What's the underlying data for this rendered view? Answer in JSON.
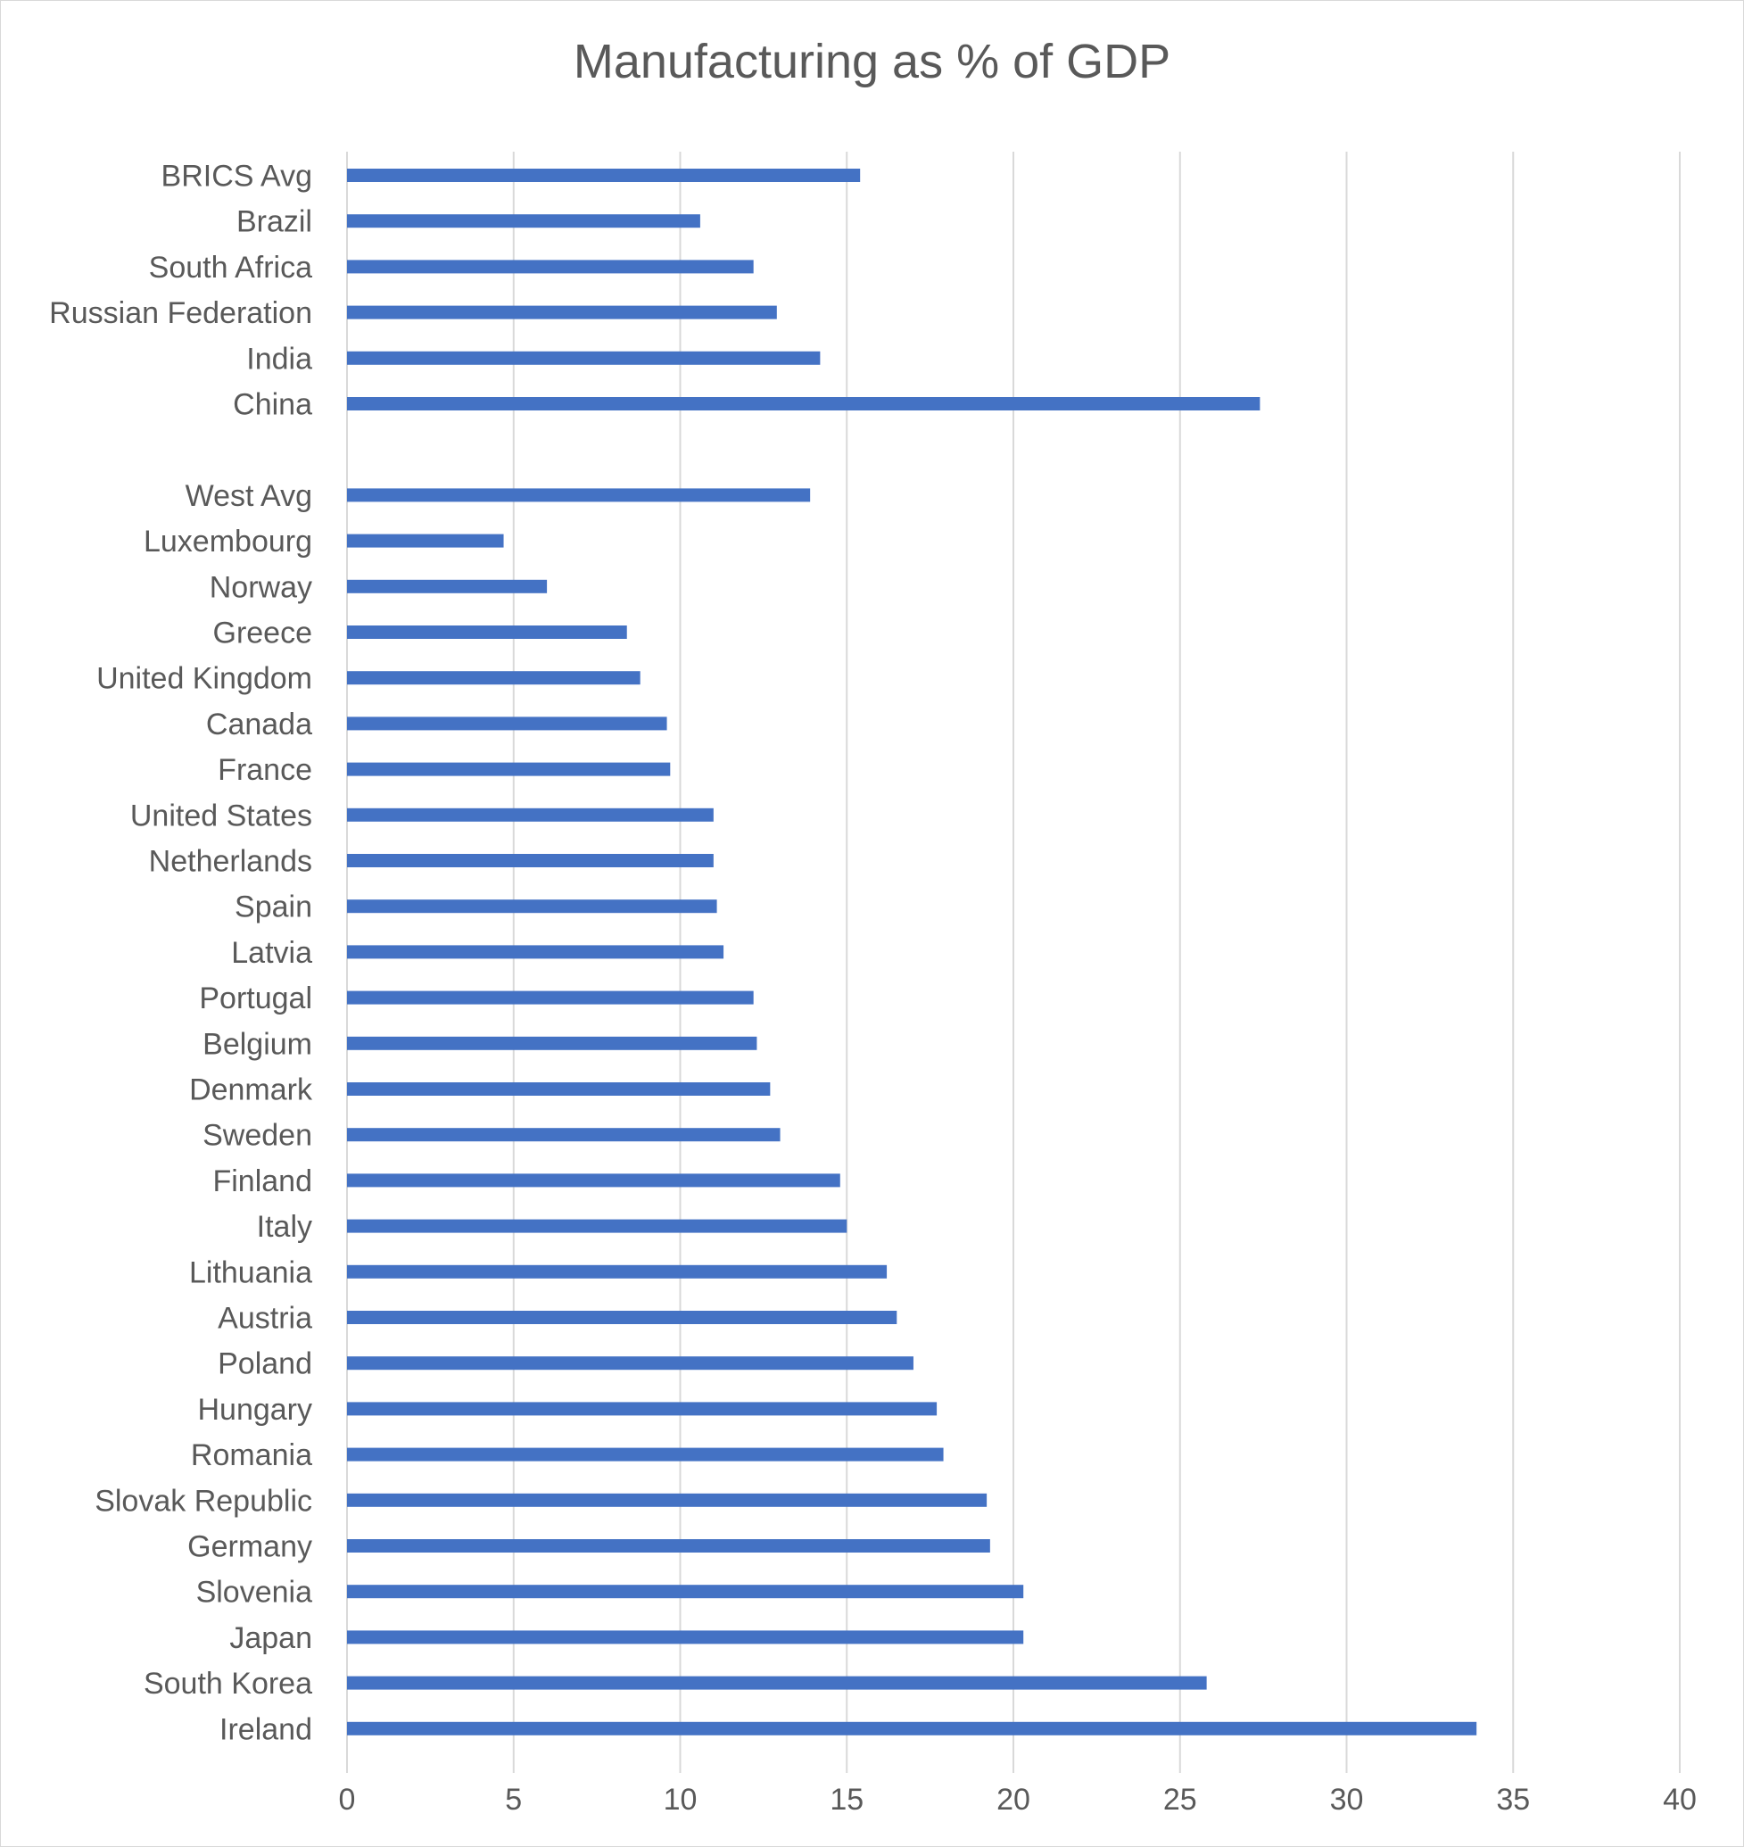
{
  "chart_data": {
    "type": "bar",
    "orientation": "horizontal",
    "title": "Manufacturing as % of GDP",
    "xlabel": "",
    "ylabel": "",
    "xlim": [
      0,
      40
    ],
    "xticks": [
      0,
      5,
      10,
      15,
      20,
      25,
      30,
      35,
      40
    ],
    "grid": true,
    "legend": "none",
    "bar_color": "#4472c4",
    "categories": [
      "BRICS Avg",
      "Brazil",
      "South Africa",
      "Russian Federation",
      "India",
      "China",
      "",
      "West Avg",
      "Luxembourg",
      "Norway",
      "Greece",
      "United Kingdom",
      "Canada",
      "France",
      "United States",
      "Netherlands",
      "Spain",
      "Latvia",
      "Portugal",
      "Belgium",
      "Denmark",
      "Sweden",
      "Finland",
      "Italy",
      "Lithuania",
      "Austria",
      "Poland",
      "Hungary",
      "Romania",
      "Slovak Republic",
      "Germany",
      "Slovenia",
      "Japan",
      "South Korea",
      "Ireland"
    ],
    "values": [
      15.4,
      10.6,
      12.2,
      12.9,
      14.2,
      27.4,
      null,
      13.9,
      4.7,
      6.0,
      8.4,
      8.8,
      9.6,
      9.7,
      11.0,
      11.0,
      11.1,
      11.3,
      12.2,
      12.3,
      12.7,
      13.0,
      14.8,
      15.0,
      16.2,
      16.5,
      17.0,
      17.7,
      17.9,
      19.2,
      19.3,
      20.3,
      20.3,
      25.8,
      33.9
    ]
  }
}
